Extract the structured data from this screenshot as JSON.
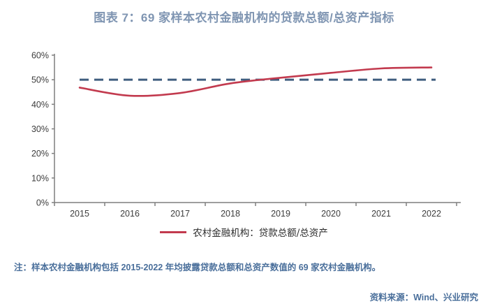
{
  "title": "图表 7：69 家样本农村金融机构的贷款总额/总资产指标",
  "note": "注：样本农村金融机构包括 2015-2022 年均披露贷款总额和总资产数值的 69 家农村金融机构。",
  "source": "资料来源：Wind、兴业研究",
  "colors": {
    "title_text": "#7f95b2",
    "note_text": "#4a6f9b",
    "series_line": "#c23a4e",
    "reference_line": "#3f5d7f",
    "axis": "#7f7f7f"
  },
  "chart_data": {
    "type": "line",
    "categories": [
      "2015",
      "2016",
      "2017",
      "2018",
      "2019",
      "2020",
      "2021",
      "2022"
    ],
    "series": [
      {
        "name": "农村金融机构：贷款总额/总资产",
        "values": [
          46.8,
          43.5,
          44.6,
          48.5,
          50.8,
          52.8,
          54.6,
          55.0
        ],
        "color": "#c23a4e",
        "style": "solid"
      }
    ],
    "reference_line": {
      "value": 50,
      "color": "#3f5d7f",
      "style": "dashed"
    },
    "ylim": [
      0,
      60
    ],
    "ytick_step": 10,
    "ytick_suffix": "%",
    "grid": false,
    "legend_position": "bottom"
  }
}
